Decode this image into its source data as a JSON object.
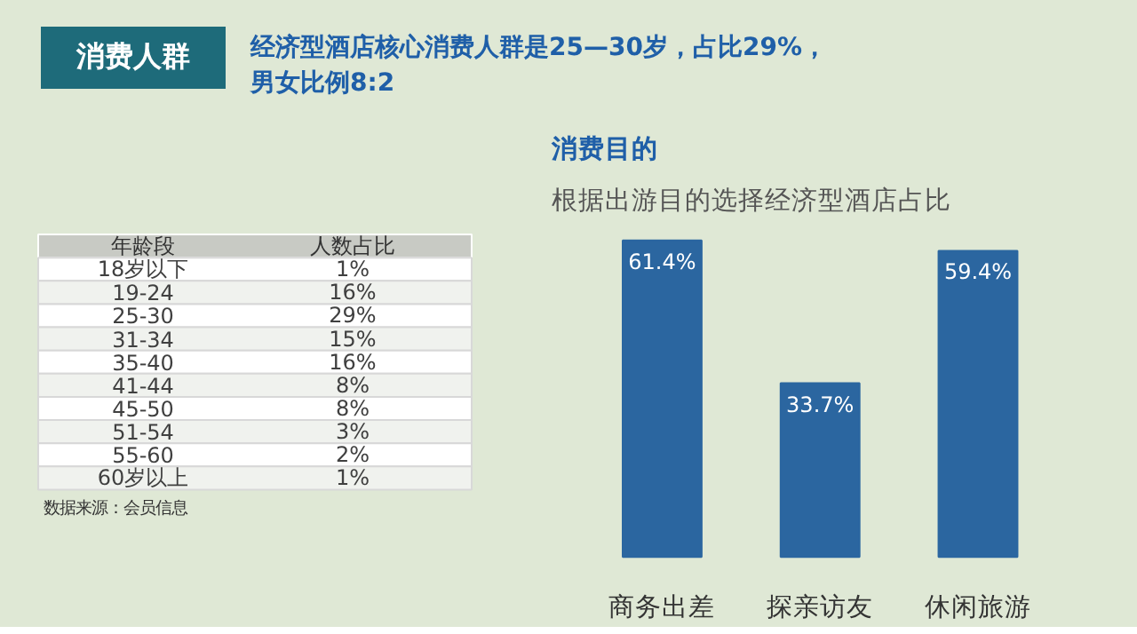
{
  "chart_data": [
    {
      "type": "other",
      "title": "消费人群",
      "subtitle": "经济型酒店核心消费人群是25—30岁，占比29%，男女比例8:2",
      "xlabel": "年龄段",
      "ylabel": "人数占比",
      "categories": [
        "18岁以下",
        "19-24",
        "25-30",
        "31-34",
        "35-40",
        "41-44",
        "45-50",
        "51-54",
        "55-60",
        "60岁以上"
      ],
      "value_labels": [
        "1%",
        "16%",
        "29%",
        "15%",
        "16%",
        "8%",
        "8%",
        "3%",
        "2%",
        "1%"
      ],
      "annotations": [
        "数据来源：会员信息"
      ]
    },
    {
      "type": "bar",
      "title": "消费目的",
      "subtitle": "根据出游目的选择经济型酒店占比",
      "categories": [
        "商务出差",
        "探亲访友",
        "休闲旅游"
      ],
      "values": [
        61.4,
        33.7,
        59.4
      ],
      "value_labels": [
        "61.4%",
        "33.7%",
        "59.4%"
      ],
      "color": "#2b66a0"
    }
  ]
}
